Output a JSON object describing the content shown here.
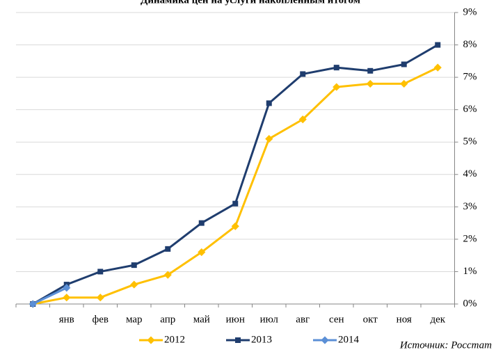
{
  "chart_data": {
    "type": "line",
    "title": "Динамика цен на услуги накопленным итогом",
    "categories": [
      null,
      "янв",
      "фев",
      "мар",
      "апр",
      "май",
      "июн",
      "июл",
      "авг",
      "сен",
      "окт",
      "ноя",
      "дек"
    ],
    "series": [
      {
        "name": "2012",
        "color": "#ffc000",
        "marker": "diamond",
        "values": [
          0,
          0.2,
          0.2,
          0.6,
          0.9,
          1.6,
          2.4,
          5.1,
          5.7,
          6.7,
          6.8,
          6.8,
          7.3
        ]
      },
      {
        "name": "2013",
        "color": "#1f3d6e",
        "marker": "square",
        "values": [
          0,
          0.6,
          1.0,
          1.2,
          1.7,
          2.5,
          3.1,
          6.2,
          7.1,
          7.3,
          7.2,
          7.4,
          8.0
        ]
      },
      {
        "name": "2014",
        "color": "#5b8fd6",
        "marker": "diamond",
        "values": [
          0,
          0.5,
          null,
          null,
          null,
          null,
          null,
          null,
          null,
          null,
          null,
          null,
          null
        ]
      }
    ],
    "ylim": [
      0,
      9
    ],
    "yticks": [
      {
        "value": 0,
        "label": "0%"
      },
      {
        "value": 1,
        "label": "1%"
      },
      {
        "value": 2,
        "label": "2%"
      },
      {
        "value": 3,
        "label": "3%"
      },
      {
        "value": 4,
        "label": "4%"
      },
      {
        "value": 5,
        "label": "5%"
      },
      {
        "value": 6,
        "label": "6%"
      },
      {
        "value": 7,
        "label": "7%"
      },
      {
        "value": 8,
        "label": "8%"
      },
      {
        "value": 9,
        "label": "9%"
      }
    ],
    "y_axis_side": "right",
    "grid": true,
    "legend": "bottom",
    "annotation": "Источник: Росстат"
  }
}
